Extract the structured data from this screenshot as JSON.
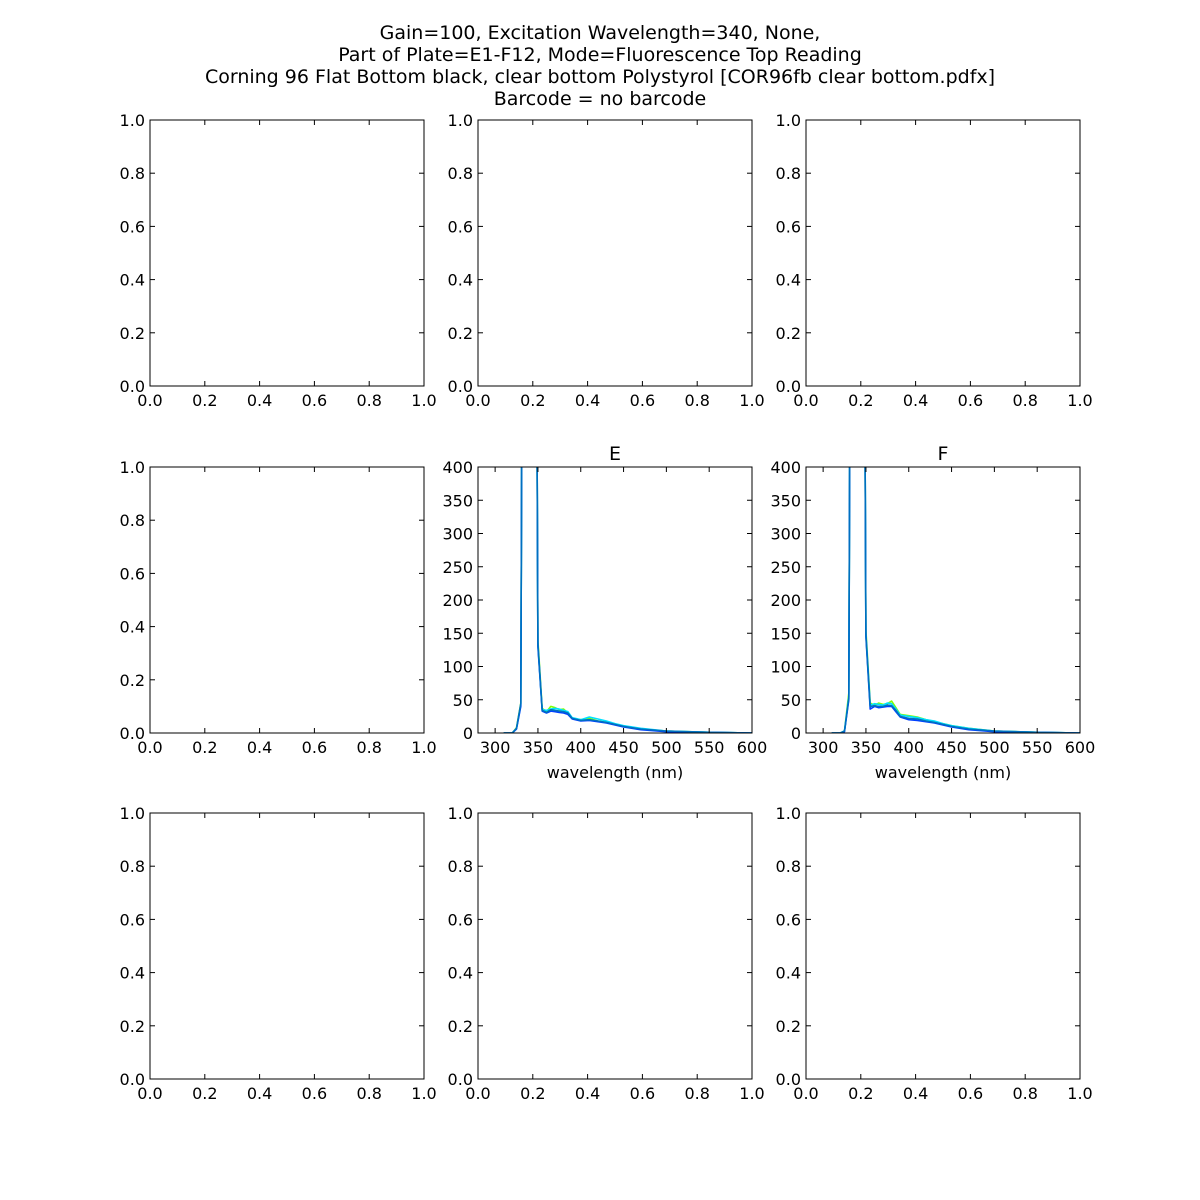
{
  "figure": {
    "title_lines": [
      "Gain=100, Excitation Wavelength=340, None,",
      "Part of Plate=E1-F12, Mode=Fluorescence Top Reading",
      "Corning 96 Flat Bottom black, clear bottom Polystyrol  [COR96fb clear bottom.pdfx]",
      "Barcode = no barcode"
    ]
  },
  "chart_data": [
    {
      "panel": "row1-col1",
      "type": "line",
      "empty": true,
      "title": "",
      "xlabel": "",
      "ylabel": "",
      "xlim": [
        0,
        1
      ],
      "ylim": [
        0,
        1
      ],
      "xticks": [
        0,
        0.2,
        0.4,
        0.6,
        0.8,
        1.0
      ],
      "yticks": [
        0,
        0.2,
        0.4,
        0.6,
        0.8,
        1.0
      ],
      "series": []
    },
    {
      "panel": "row1-col2",
      "type": "line",
      "empty": true,
      "title": "",
      "xlabel": "",
      "ylabel": "",
      "xlim": [
        0,
        1
      ],
      "ylim": [
        0,
        1
      ],
      "xticks": [
        0,
        0.2,
        0.4,
        0.6,
        0.8,
        1.0
      ],
      "yticks": [
        0,
        0.2,
        0.4,
        0.6,
        0.8,
        1.0
      ],
      "series": []
    },
    {
      "panel": "row1-col3",
      "type": "line",
      "empty": true,
      "title": "",
      "xlabel": "",
      "ylabel": "",
      "xlim": [
        0,
        1
      ],
      "ylim": [
        0,
        1
      ],
      "xticks": [
        0,
        0.2,
        0.4,
        0.6,
        0.8,
        1.0
      ],
      "yticks": [
        0,
        0.2,
        0.4,
        0.6,
        0.8,
        1.0
      ],
      "series": []
    },
    {
      "panel": "row2-col1",
      "type": "line",
      "empty": true,
      "title": "",
      "xlabel": "",
      "ylabel": "",
      "xlim": [
        0,
        1
      ],
      "ylim": [
        0,
        1
      ],
      "xticks": [
        0,
        0.2,
        0.4,
        0.6,
        0.8,
        1.0
      ],
      "yticks": [
        0,
        0.2,
        0.4,
        0.6,
        0.8,
        1.0
      ],
      "series": []
    },
    {
      "panel": "row2-col2",
      "type": "line",
      "empty": false,
      "title": "E",
      "xlabel": "wavelength (nm)",
      "ylabel": "",
      "xlim": [
        280,
        600
      ],
      "ylim": [
        0,
        400
      ],
      "xticks": [
        300,
        350,
        400,
        450,
        500,
        550,
        600
      ],
      "yticks": [
        0,
        50,
        100,
        150,
        200,
        250,
        300,
        350,
        400
      ],
      "series": [
        {
          "color": "#80ff00",
          "x": [
            310,
            320,
            325,
            330,
            331,
            349,
            350,
            355,
            360,
            365,
            370,
            375,
            380,
            385,
            390,
            400,
            410,
            420,
            430,
            440,
            450,
            470,
            500,
            550,
            600
          ],
          "y": [
            0,
            0,
            8,
            45,
            420,
            420,
            140,
            37,
            32,
            40,
            38,
            35,
            36,
            30,
            22,
            20,
            22,
            18,
            16,
            13,
            10,
            6,
            3,
            1,
            0
          ]
        },
        {
          "color": "#00e0ff",
          "x": [
            310,
            320,
            325,
            330,
            331,
            349,
            350,
            355,
            360,
            365,
            370,
            375,
            380,
            385,
            390,
            400,
            410,
            420,
            430,
            440,
            450,
            470,
            500,
            550,
            600
          ],
          "y": [
            0,
            0,
            7,
            42,
            420,
            420,
            132,
            35,
            34,
            36,
            37,
            36,
            34,
            32,
            23,
            20,
            24,
            21,
            18,
            14,
            11,
            7,
            3,
            1,
            0
          ]
        },
        {
          "color": "#0040ff",
          "x": [
            310,
            320,
            325,
            330,
            331,
            349,
            350,
            355,
            360,
            365,
            370,
            375,
            380,
            385,
            390,
            400,
            410,
            420,
            430,
            440,
            450,
            470,
            500,
            550,
            600
          ],
          "y": [
            0,
            0,
            6,
            40,
            420,
            420,
            130,
            33,
            30,
            33,
            32,
            31,
            30,
            28,
            21,
            18,
            19,
            17,
            15,
            12,
            9,
            5,
            2,
            1,
            0
          ]
        },
        {
          "color": "#0070c0",
          "x": [
            310,
            320,
            325,
            330,
            331,
            349,
            350,
            355,
            360,
            365,
            370,
            375,
            380,
            385,
            390,
            400,
            410,
            420,
            430,
            440,
            450,
            470,
            500,
            550,
            600
          ],
          "y": [
            0,
            0,
            7,
            44,
            420,
            420,
            135,
            34,
            31,
            35,
            34,
            33,
            32,
            30,
            22,
            19,
            20,
            18,
            16,
            13,
            10,
            6,
            3,
            1,
            0
          ]
        }
      ]
    },
    {
      "panel": "row2-col3",
      "type": "line",
      "empty": false,
      "title": "F",
      "xlabel": "wavelength (nm)",
      "ylabel": "",
      "xlim": [
        280,
        600
      ],
      "ylim": [
        0,
        400
      ],
      "xticks": [
        300,
        350,
        400,
        450,
        500,
        550,
        600
      ],
      "yticks": [
        0,
        50,
        100,
        150,
        200,
        250,
        300,
        350,
        400
      ],
      "series": [
        {
          "color": "#80ff00",
          "x": [
            310,
            320,
            325,
            330,
            331,
            349,
            350,
            355,
            360,
            365,
            370,
            375,
            380,
            385,
            390,
            400,
            410,
            420,
            430,
            440,
            450,
            470,
            500,
            550,
            600
          ],
          "y": [
            0,
            0,
            3,
            60,
            420,
            420,
            155,
            45,
            42,
            45,
            43,
            44,
            48,
            38,
            28,
            26,
            24,
            20,
            17,
            14,
            11,
            7,
            3,
            1,
            0
          ]
        },
        {
          "color": "#00e0ff",
          "x": [
            310,
            320,
            325,
            330,
            331,
            349,
            350,
            355,
            360,
            365,
            370,
            375,
            380,
            385,
            390,
            400,
            410,
            420,
            430,
            440,
            450,
            470,
            500,
            550,
            600
          ],
          "y": [
            0,
            0,
            3,
            55,
            420,
            420,
            150,
            42,
            44,
            43,
            42,
            45,
            44,
            36,
            27,
            25,
            23,
            20,
            18,
            14,
            11,
            7,
            3,
            1,
            0
          ]
        },
        {
          "color": "#0040ff",
          "x": [
            310,
            320,
            325,
            330,
            331,
            349,
            350,
            355,
            360,
            365,
            370,
            375,
            380,
            385,
            390,
            400,
            410,
            420,
            430,
            440,
            450,
            470,
            500,
            550,
            600
          ],
          "y": [
            0,
            0,
            2,
            50,
            420,
            420,
            145,
            36,
            40,
            38,
            39,
            40,
            40,
            32,
            24,
            20,
            19,
            17,
            15,
            12,
            9,
            5,
            2,
            1,
            0
          ]
        },
        {
          "color": "#0070c0",
          "x": [
            310,
            320,
            325,
            330,
            331,
            349,
            350,
            355,
            360,
            365,
            370,
            375,
            380,
            385,
            390,
            400,
            410,
            420,
            430,
            440,
            450,
            470,
            500,
            550,
            600
          ],
          "y": [
            0,
            0,
            3,
            52,
            420,
            420,
            148,
            40,
            41,
            40,
            40,
            42,
            41,
            34,
            25,
            22,
            21,
            18,
            16,
            13,
            10,
            6,
            3,
            1,
            0
          ]
        }
      ]
    },
    {
      "panel": "row3-col1",
      "type": "line",
      "empty": true,
      "title": "",
      "xlabel": "",
      "ylabel": "",
      "xlim": [
        0,
        1
      ],
      "ylim": [
        0,
        1
      ],
      "xticks": [
        0,
        0.2,
        0.4,
        0.6,
        0.8,
        1.0
      ],
      "yticks": [
        0,
        0.2,
        0.4,
        0.6,
        0.8,
        1.0
      ],
      "series": []
    },
    {
      "panel": "row3-col2",
      "type": "line",
      "empty": true,
      "title": "",
      "xlabel": "",
      "ylabel": "",
      "xlim": [
        0,
        1
      ],
      "ylim": [
        0,
        1
      ],
      "xticks": [
        0,
        0.2,
        0.4,
        0.6,
        0.8,
        1.0
      ],
      "yticks": [
        0,
        0.2,
        0.4,
        0.6,
        0.8,
        1.0
      ],
      "series": []
    },
    {
      "panel": "row3-col3",
      "type": "line",
      "empty": true,
      "title": "",
      "xlabel": "",
      "ylabel": "",
      "xlim": [
        0,
        1
      ],
      "ylim": [
        0,
        1
      ],
      "xticks": [
        0,
        0.2,
        0.4,
        0.6,
        0.8,
        1.0
      ],
      "yticks": [
        0,
        0.2,
        0.4,
        0.6,
        0.8,
        1.0
      ],
      "series": []
    }
  ]
}
